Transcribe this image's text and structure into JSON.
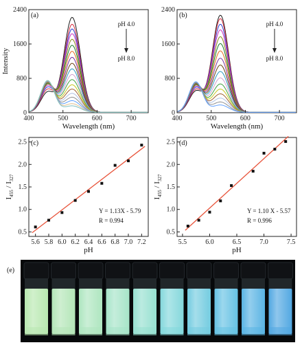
{
  "figure": {
    "panels": [
      {
        "id": "a",
        "label": "(a)",
        "type": "line",
        "xlabel": "Wavelength (nm)",
        "ylabel": "Intensity",
        "xlim": [
          400,
          750
        ],
        "ylim": [
          0,
          2400
        ],
        "xticks": [
          "400",
          "500",
          "600",
          "700"
        ],
        "yticks": [
          "0",
          "800",
          "1600",
          "2400"
        ],
        "annotation_top": "pH 4.0",
        "annotation_bottom": "pH 8.0",
        "peak_long_nm": 527,
        "peak_short_nm": 455,
        "peak_long_values": [
          2210,
          2050,
          1940,
          1830,
          1700,
          1560,
          1420,
          1280,
          1140,
          1010,
          880,
          760,
          640,
          540,
          440,
          350,
          270,
          200,
          150
        ],
        "peak_short_values": [
          460,
          520,
          570,
          610,
          640,
          660,
          675,
          685,
          690,
          695,
          700,
          705,
          710,
          715,
          720,
          725,
          730,
          735,
          740
        ],
        "colors": [
          "#1a1a1a",
          "#d6283a",
          "#2a3ed0",
          "#c832c0",
          "#8a8a1c",
          "#1a7a2c",
          "#e66a20",
          "#7a30a0",
          "#6a4010",
          "#2c9ac0",
          "#d0a0d0",
          "#40a040",
          "#c8c820",
          "#a06030",
          "#b0c0e0",
          "#909090",
          "#60a0ff",
          "#e0c090",
          "#80c0c0"
        ]
      },
      {
        "id": "b",
        "label": "(b)",
        "type": "line",
        "xlabel": "Wavelength (nm)",
        "ylabel": "",
        "xlim": [
          400,
          750
        ],
        "ylim": [
          0,
          2400
        ],
        "xticks": [
          "400",
          "500",
          "600",
          "700"
        ],
        "yticks": [
          "0",
          "800",
          "1600",
          "2400"
        ],
        "annotation_top": "pH 4.0",
        "annotation_bottom": "pH 8.0",
        "peak_long_nm": 527,
        "peak_short_nm": 455,
        "peak_long_values": [
          2260,
          2180,
          2050,
          1920,
          1760,
          1600,
          1430,
          1260,
          1100,
          950,
          800,
          660,
          540,
          430,
          330,
          240,
          170
        ],
        "peak_short_values": [
          480,
          520,
          560,
          590,
          615,
          635,
          650,
          660,
          668,
          675,
          680,
          685,
          690,
          695,
          700,
          705,
          710
        ],
        "colors": [
          "#1a1a1a",
          "#d6283a",
          "#2a3ed0",
          "#c832c0",
          "#8a8a1c",
          "#1a7a2c",
          "#e66a20",
          "#7a30a0",
          "#6a4010",
          "#2c9ac0",
          "#d0a0d0",
          "#40a040",
          "#c8c820",
          "#a06030",
          "#b0c0e0",
          "#909090",
          "#60a0ff"
        ]
      }
    ],
    "panel_c": {
      "label": "(c)",
      "equation": "Y = 1.13X - 5.79",
      "r_text": "R = 0.994"
    },
    "panel_d": {
      "label": "(d)",
      "equation": "Y = 1.10 X - 5.57",
      "r_text": "R = 0.996"
    },
    "panel_e": {
      "label": "(e)",
      "vial_colors": [
        "#b8e8b0",
        "#b4e6b8",
        "#aee6c0",
        "#a6e4c8",
        "#96e0d0",
        "#84d8dc",
        "#74cce0",
        "#66c2e4",
        "#5ab4e4",
        "#52a8e2"
      ]
    },
    "line_color": "#e8533a"
  },
  "chart_data": [
    {
      "type": "line",
      "title": "",
      "xlabel": "Wavelength (nm)",
      "ylabel": "Intensity",
      "xlim": [
        400,
        750
      ],
      "ylim": [
        0,
        2400
      ],
      "series_note": "pH 4.0 to pH 8.0",
      "peak_long_values": [
        2210,
        2050,
        1940,
        1830,
        1700,
        1560,
        1420,
        1280,
        1140,
        1010,
        880,
        760,
        640,
        540,
        440,
        350,
        270,
        200,
        150
      ]
    },
    {
      "type": "line",
      "title": "",
      "xlabel": "Wavelength (nm)",
      "ylabel": "",
      "xlim": [
        400,
        750
      ],
      "ylim": [
        0,
        2400
      ],
      "series_note": "pH 4.0 to pH 8.0",
      "peak_long_values": [
        2260,
        2180,
        2050,
        1920,
        1760,
        1600,
        1430,
        1260,
        1100,
        950,
        800,
        660,
        540,
        430,
        330,
        240,
        170
      ]
    },
    {
      "type": "scatter",
      "title": "",
      "xlabel": "pH",
      "ylabel": "I455 / I527",
      "xlim": [
        5.5,
        7.3
      ],
      "ylim": [
        0.4,
        2.6
      ],
      "xticks": [
        "5.6",
        "5.8",
        "6.0",
        "6.2",
        "6.4",
        "6.6",
        "6.8",
        "7.0",
        "7.2"
      ],
      "yticks": [
        "0.5",
        "1.0",
        "1.5",
        "2.0",
        "2.5"
      ],
      "x": [
        5.6,
        5.8,
        6.0,
        6.2,
        6.4,
        6.6,
        6.8,
        7.0,
        7.2
      ],
      "y": [
        0.61,
        0.76,
        0.93,
        1.2,
        1.4,
        1.58,
        1.98,
        2.08,
        2.43
      ],
      "fit": {
        "slope": 1.13,
        "intercept": -5.79,
        "equation": "Y = 1.13X - 5.79",
        "r": "R = 0.994"
      }
    },
    {
      "type": "scatter",
      "title": "",
      "xlabel": "pH",
      "ylabel": "I455 / I527",
      "xlim": [
        5.4,
        7.6
      ],
      "ylim": [
        0.4,
        2.6
      ],
      "xticks": [
        "5.5",
        "6.0",
        "6.5",
        "7.0",
        "7.5"
      ],
      "yticks": [
        "0.5",
        "1.0",
        "1.5",
        "2.0",
        "2.5"
      ],
      "x": [
        5.6,
        5.8,
        6.0,
        6.2,
        6.4,
        6.8,
        7.0,
        7.2,
        7.4
      ],
      "y": [
        0.63,
        0.76,
        0.94,
        1.19,
        1.53,
        1.85,
        2.25,
        2.34,
        2.51
      ],
      "fit": {
        "slope": 1.1,
        "intercept": -5.57,
        "equation": "Y = 1.10 X - 5.57",
        "r": "R = 0.996"
      }
    }
  ]
}
